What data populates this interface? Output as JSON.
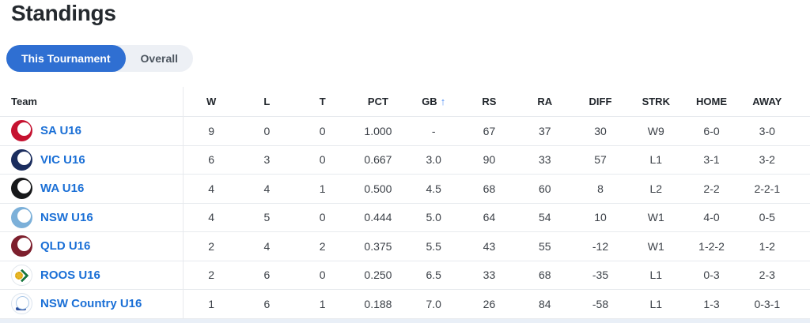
{
  "page": {
    "title": "Standings"
  },
  "tabs": [
    {
      "label": "This Tournament",
      "active": true
    },
    {
      "label": "Overall",
      "active": false
    }
  ],
  "colors": {
    "accent_blue": "#2f6fd2",
    "team_link_blue": "#1a6fd6",
    "sort_arrow_blue": "#4e8ef5",
    "row_border": "#e7eaee",
    "tab_track_gray": "#edf0f5",
    "header_text": "#21262c",
    "body_text": "#3c4148",
    "bottom_strip": "#e9eff7"
  },
  "table": {
    "sort": {
      "column": "gb",
      "direction": "asc",
      "arrow": "↑"
    },
    "columns": [
      {
        "key": "team",
        "label": "Team"
      },
      {
        "key": "w",
        "label": "W"
      },
      {
        "key": "l",
        "label": "L"
      },
      {
        "key": "t",
        "label": "T"
      },
      {
        "key": "pct",
        "label": "PCT"
      },
      {
        "key": "gb",
        "label": "GB"
      },
      {
        "key": "rs",
        "label": "RS"
      },
      {
        "key": "ra",
        "label": "RA"
      },
      {
        "key": "diff",
        "label": "DIFF"
      },
      {
        "key": "strk",
        "label": "STRK"
      },
      {
        "key": "home",
        "label": "HOME"
      },
      {
        "key": "away",
        "label": "AWAY"
      }
    ],
    "rows": [
      {
        "team": "SA U16",
        "logo": {
          "icon": "baseball-badge-icon",
          "bg": "#c51230",
          "variant": "ball"
        },
        "w": "9",
        "l": "0",
        "t": "0",
        "pct": "1.000",
        "gb": "-",
        "rs": "67",
        "ra": "37",
        "diff": "30",
        "strk": "W9",
        "home": "6-0",
        "away": "3-0"
      },
      {
        "team": "VIC U16",
        "logo": {
          "icon": "baseball-badge-icon",
          "bg": "#1b2d5e",
          "variant": "ball"
        },
        "w": "6",
        "l": "3",
        "t": "0",
        "pct": "0.667",
        "gb": "3.0",
        "rs": "90",
        "ra": "33",
        "diff": "57",
        "strk": "L1",
        "home": "3-1",
        "away": "3-2"
      },
      {
        "team": "WA U16",
        "logo": {
          "icon": "baseball-badge-icon",
          "bg": "#17181a",
          "variant": "ball"
        },
        "w": "4",
        "l": "4",
        "t": "1",
        "pct": "0.500",
        "gb": "4.5",
        "rs": "68",
        "ra": "60",
        "diff": "8",
        "strk": "L2",
        "home": "2-2",
        "away": "2-2-1"
      },
      {
        "team": "NSW U16",
        "logo": {
          "icon": "baseball-badge-icon",
          "bg": "#7cb0d9",
          "variant": "ball"
        },
        "w": "4",
        "l": "5",
        "t": "0",
        "pct": "0.444",
        "gb": "5.0",
        "rs": "64",
        "ra": "54",
        "diff": "10",
        "strk": "W1",
        "home": "4-0",
        "away": "0-5"
      },
      {
        "team": "QLD U16",
        "logo": {
          "icon": "baseball-badge-icon",
          "bg": "#7d1f2d",
          "variant": "ball"
        },
        "w": "2",
        "l": "4",
        "t": "2",
        "pct": "0.375",
        "gb": "5.5",
        "rs": "43",
        "ra": "55",
        "diff": "-12",
        "strk": "W1",
        "home": "1-2-2",
        "away": "1-2"
      },
      {
        "team": "ROOS U16",
        "logo": {
          "icon": "roos-emblem-icon",
          "bg": "#ffffff",
          "variant": "roos"
        },
        "w": "2",
        "l": "6",
        "t": "0",
        "pct": "0.250",
        "gb": "6.5",
        "rs": "33",
        "ra": "68",
        "diff": "-35",
        "strk": "L1",
        "home": "0-3",
        "away": "2-3"
      },
      {
        "team": "NSW Country U16",
        "logo": {
          "icon": "baseball-badge-icon",
          "bg": "#fdfdfe",
          "variant": "outline"
        },
        "w": "1",
        "l": "6",
        "t": "1",
        "pct": "0.188",
        "gb": "7.0",
        "rs": "26",
        "ra": "84",
        "diff": "-58",
        "strk": "L1",
        "home": "1-3",
        "away": "0-3-1"
      }
    ]
  }
}
